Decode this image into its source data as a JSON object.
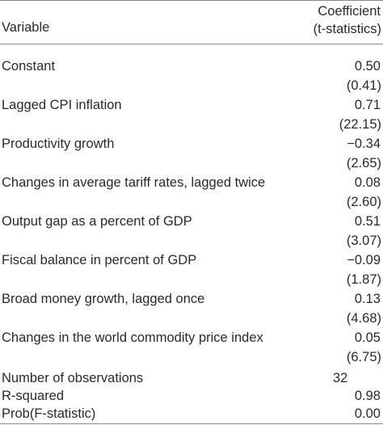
{
  "header": {
    "variable": "Variable",
    "coefficient": "Coefficient",
    "tstat": "(t-statistics)"
  },
  "rows": [
    {
      "label": "Constant",
      "coef": "0.50",
      "t": "(0.41)"
    },
    {
      "label": "Lagged CPI inflation",
      "coef": "0.71",
      "t": "(22.15)"
    },
    {
      "label": "Productivity growth",
      "coef": "−0.34",
      "t": "(2.65)"
    },
    {
      "label": "Changes in average tariff rates, lagged twice",
      "coef": "0.08",
      "t": "(2.60)"
    },
    {
      "label": "Output gap as a percent of GDP",
      "coef": "0.51",
      "t": "(3.07)"
    },
    {
      "label": "Fiscal balance in percent of GDP",
      "coef": "−0.09",
      "t": "(1.87)"
    },
    {
      "label": "Broad money growth, lagged once",
      "coef": "0.13",
      "t": "(4.68)"
    },
    {
      "label": "Changes in the world commodity price index",
      "coef": "0.05",
      "t": "(6.75)"
    }
  ],
  "stats": [
    {
      "label": "Number of observations",
      "value": "32"
    },
    {
      "label": "R-squared",
      "value": "0.98"
    },
    {
      "label": "Prob(F-statistic)",
      "value": "0.00"
    }
  ]
}
